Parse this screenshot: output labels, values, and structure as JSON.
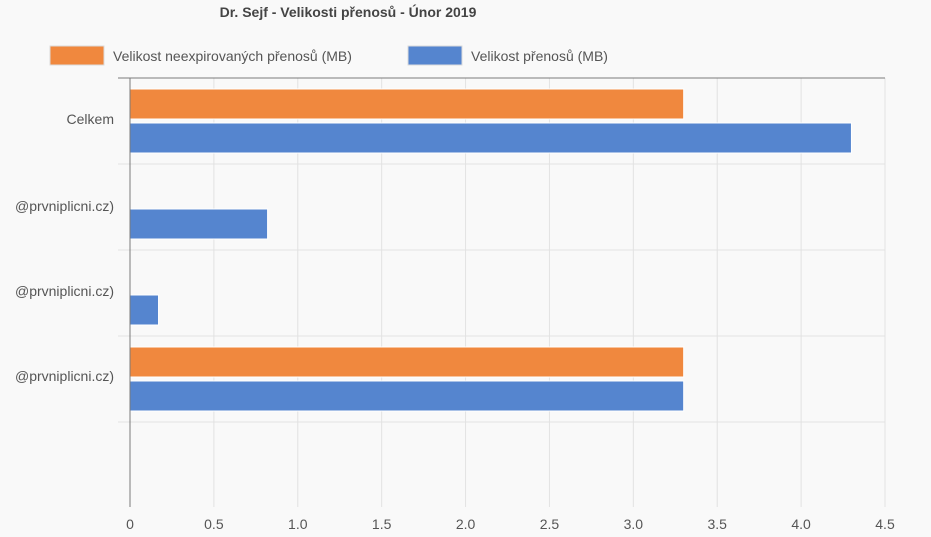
{
  "chart_data": {
    "type": "bar",
    "orientation": "horizontal",
    "title": "Dr. Sejf - Velikosti přenosů - Únor 2019",
    "categories": [
      "Celkem",
      "@prvniplicni.cz)",
      "@prvniplicni.cz)",
      "@prvniplicni.cz)"
    ],
    "series": [
      {
        "name": "Velikost neexpirovaných přenosů (MB)",
        "color": "#f0883e",
        "values": [
          3.3,
          0,
          0,
          3.3
        ]
      },
      {
        "name": "Velikost přenosů (MB)",
        "color": "#5585cf",
        "values": [
          4.3,
          0.82,
          0.17,
          3.3
        ]
      }
    ],
    "xlim": [
      0,
      4.5
    ],
    "xticks": [
      "0",
      "0.5",
      "1.0",
      "1.5",
      "2.0",
      "2.5",
      "3.0",
      "3.5",
      "4.0",
      "4.5"
    ],
    "grid": true,
    "legend_position": "top"
  }
}
